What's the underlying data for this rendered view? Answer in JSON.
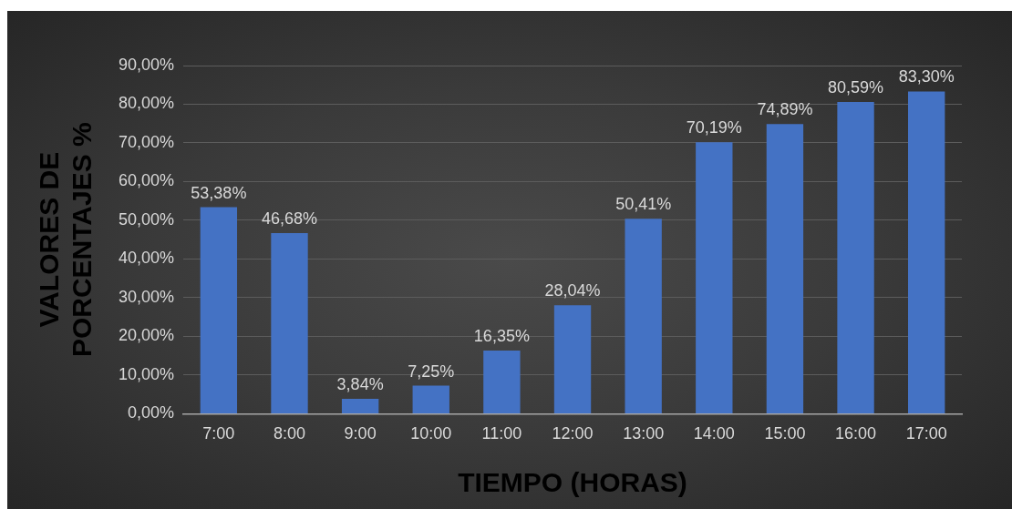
{
  "chart_data": {
    "type": "bar",
    "xlabel": "TIEMPO (HORAS)",
    "ylabel": "VALORES DE PORCENTAJES %",
    "categories": [
      "7:00",
      "8:00",
      "9:00",
      "10:00",
      "11:00",
      "12:00",
      "13:00",
      "14:00",
      "15:00",
      "16:00",
      "17:00"
    ],
    "values": [
      53.38,
      46.68,
      3.84,
      7.25,
      16.35,
      28.04,
      50.41,
      70.19,
      74.89,
      80.59,
      83.3
    ],
    "value_labels": [
      "53,38%",
      "46,68%",
      "3,84%",
      "7,25%",
      "16,35%",
      "28,04%",
      "50,41%",
      "70,19%",
      "74,89%",
      "80,59%",
      "83,30%"
    ],
    "color": "#4472c4",
    "ylim": [
      0,
      90
    ],
    "yticks": [
      {
        "value": 0,
        "label": "0,00%"
      },
      {
        "value": 10,
        "label": "10,00%"
      },
      {
        "value": 20,
        "label": "20,00%"
      },
      {
        "value": 30,
        "label": "30,00%"
      },
      {
        "value": 40,
        "label": "40,00%"
      },
      {
        "value": 50,
        "label": "50,00%"
      },
      {
        "value": 60,
        "label": "60,00%"
      },
      {
        "value": 70,
        "label": "70,00%"
      },
      {
        "value": 80,
        "label": "80,00%"
      },
      {
        "value": 90,
        "label": "90,00%"
      }
    ],
    "grid": "y"
  }
}
